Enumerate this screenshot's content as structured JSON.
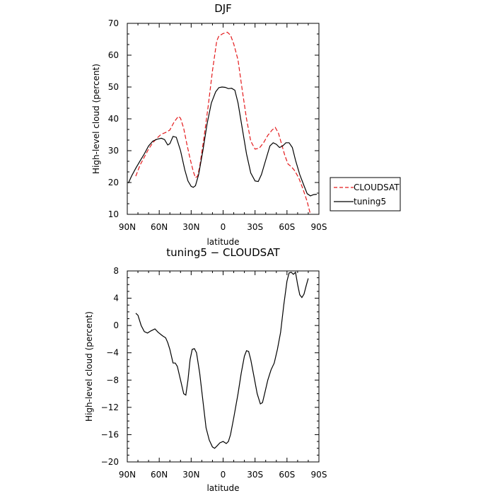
{
  "chart_data": [
    {
      "type": "line",
      "title": "DJF",
      "xlabel": "latitude",
      "ylabel": "High-level cloud (percent)",
      "x_ticks": [
        {
          "value": 90,
          "label": "90N"
        },
        {
          "value": 60,
          "label": "60N"
        },
        {
          "value": 30,
          "label": "30N"
        },
        {
          "value": 0,
          "label": "0"
        },
        {
          "value": -30,
          "label": "30S"
        },
        {
          "value": -60,
          "label": "60S"
        },
        {
          "value": -90,
          "label": "90S"
        }
      ],
      "xlim": [
        90,
        -90
      ],
      "ylim": [
        10,
        70
      ],
      "y_ticks": [
        10,
        20,
        30,
        40,
        50,
        60,
        70
      ],
      "grid": false,
      "legend_position": "right",
      "series": [
        {
          "name": "CLOUDSAT",
          "color": "#e41a1c",
          "dash": "dashed",
          "points": [
            [
              82,
              22.0
            ],
            [
              78,
              25.5
            ],
            [
              74,
              28.0
            ],
            [
              70,
              30.5
            ],
            [
              66,
              32.5
            ],
            [
              62,
              34.0
            ],
            [
              58,
              35.2
            ],
            [
              54,
              35.7
            ],
            [
              50,
              36.5
            ],
            [
              46,
              39.0
            ],
            [
              42,
              40.8
            ],
            [
              40,
              40.2
            ],
            [
              37,
              37.0
            ],
            [
              34,
              32.0
            ],
            [
              31,
              27.5
            ],
            [
              28,
              23.5
            ],
            [
              26,
              21.5
            ],
            [
              24,
              22.0
            ],
            [
              22,
              25.0
            ],
            [
              18,
              34.0
            ],
            [
              14,
              44.0
            ],
            [
              10,
              55.0
            ],
            [
              6,
              64.5
            ],
            [
              4,
              66.0
            ],
            [
              0,
              66.8
            ],
            [
              -4,
              67.2
            ],
            [
              -7,
              66.3
            ],
            [
              -10,
              63.5
            ],
            [
              -14,
              58.5
            ],
            [
              -18,
              49.0
            ],
            [
              -22,
              40.0
            ],
            [
              -26,
              33.0
            ],
            [
              -30,
              30.5
            ],
            [
              -34,
              30.8
            ],
            [
              -38,
              32.5
            ],
            [
              -42,
              34.8
            ],
            [
              -46,
              36.5
            ],
            [
              -49,
              37.3
            ],
            [
              -52,
              35.5
            ],
            [
              -55,
              32.0
            ],
            [
              -58,
              28.5
            ],
            [
              -61,
              25.8
            ],
            [
              -64,
              25.0
            ],
            [
              -67,
              23.8
            ],
            [
              -71,
              21.5
            ],
            [
              -75,
              18.0
            ],
            [
              -79,
              14.0
            ],
            [
              -82,
              10.0
            ]
          ]
        },
        {
          "name": "tuning5",
          "color": "#000000",
          "dash": "solid",
          "points": [
            [
              89,
              19.8
            ],
            [
              86,
              22.0
            ],
            [
              82,
              24.5
            ],
            [
              78,
              26.8
            ],
            [
              74,
              29.0
            ],
            [
              70,
              31.5
            ],
            [
              66,
              33.0
            ],
            [
              62,
              33.6
            ],
            [
              58,
              33.9
            ],
            [
              55,
              33.5
            ],
            [
              52,
              31.8
            ],
            [
              50,
              32.2
            ],
            [
              47,
              34.5
            ],
            [
              44,
              34.2
            ],
            [
              40,
              30.0
            ],
            [
              36,
              24.0
            ],
            [
              33,
              20.5
            ],
            [
              30,
              18.8
            ],
            [
              28,
              18.5
            ],
            [
              26,
              19.0
            ],
            [
              23,
              22.5
            ],
            [
              19,
              30.0
            ],
            [
              15,
              38.5
            ],
            [
              11,
              45.0
            ],
            [
              7,
              48.5
            ],
            [
              4,
              49.8
            ],
            [
              1,
              50.0
            ],
            [
              -2,
              49.9
            ],
            [
              -5,
              49.5
            ],
            [
              -8,
              49.6
            ],
            [
              -11,
              49.0
            ],
            [
              -14,
              45.0
            ],
            [
              -18,
              37.0
            ],
            [
              -22,
              29.0
            ],
            [
              -26,
              23.0
            ],
            [
              -30,
              20.5
            ],
            [
              -33,
              20.3
            ],
            [
              -36,
              22.5
            ],
            [
              -40,
              27.0
            ],
            [
              -44,
              31.5
            ],
            [
              -47,
              32.5
            ],
            [
              -50,
              32.0
            ],
            [
              -53,
              31.0
            ],
            [
              -56,
              31.5
            ],
            [
              -59,
              32.5
            ],
            [
              -62,
              32.5
            ],
            [
              -65,
              31.0
            ],
            [
              -68,
              27.0
            ],
            [
              -72,
              22.5
            ],
            [
              -76,
              19.0
            ],
            [
              -79,
              16.5
            ],
            [
              -82,
              15.8
            ],
            [
              -85,
              16.2
            ],
            [
              -88,
              16.3
            ]
          ]
        }
      ]
    },
    {
      "type": "line",
      "title": "tuning5 − CLOUDSAT",
      "xlabel": "latitude",
      "ylabel": "High-level cloud (percent)",
      "x_ticks": [
        {
          "value": 90,
          "label": "90N"
        },
        {
          "value": 60,
          "label": "60N"
        },
        {
          "value": 30,
          "label": "30N"
        },
        {
          "value": 0,
          "label": "0"
        },
        {
          "value": -30,
          "label": "30S"
        },
        {
          "value": -60,
          "label": "60S"
        },
        {
          "value": -90,
          "label": "90S"
        }
      ],
      "xlim": [
        90,
        -90
      ],
      "ylim": [
        -20,
        8
      ],
      "y_ticks": [
        -20,
        -16,
        -12,
        -8,
        -4,
        0,
        4,
        8
      ],
      "grid": false,
      "series": [
        {
          "color": "#000000",
          "dash": "solid",
          "points": [
            [
              82,
              1.8
            ],
            [
              80,
              1.5
            ],
            [
              77,
              0.0
            ],
            [
              74,
              -0.9
            ],
            [
              71,
              -1.1
            ],
            [
              68,
              -0.8
            ],
            [
              64,
              -0.5
            ],
            [
              61,
              -1.0
            ],
            [
              57,
              -1.5
            ],
            [
              54,
              -1.8
            ],
            [
              52,
              -2.5
            ],
            [
              50,
              -3.5
            ],
            [
              47,
              -5.5
            ],
            [
              45,
              -5.5
            ],
            [
              43,
              -6.0
            ],
            [
              40,
              -8.0
            ],
            [
              37,
              -10.0
            ],
            [
              35,
              -10.2
            ],
            [
              33,
              -8.0
            ],
            [
              31,
              -5.0
            ],
            [
              29,
              -3.5
            ],
            [
              27,
              -3.4
            ],
            [
              25,
              -4.0
            ],
            [
              22,
              -7.0
            ],
            [
              19,
              -11.0
            ],
            [
              16,
              -15.0
            ],
            [
              13,
              -16.8
            ],
            [
              10,
              -17.8
            ],
            [
              8,
              -18.0
            ],
            [
              6,
              -17.7
            ],
            [
              3,
              -17.2
            ],
            [
              0,
              -17.0
            ],
            [
              -3,
              -17.3
            ],
            [
              -5,
              -17.0
            ],
            [
              -7,
              -16.0
            ],
            [
              -10,
              -13.5
            ],
            [
              -14,
              -10.0
            ],
            [
              -17,
              -7.0
            ],
            [
              -20,
              -4.5
            ],
            [
              -22,
              -3.7
            ],
            [
              -24,
              -3.8
            ],
            [
              -26,
              -5.0
            ],
            [
              -29,
              -7.5
            ],
            [
              -32,
              -10.0
            ],
            [
              -35,
              -11.5
            ],
            [
              -37,
              -11.3
            ],
            [
              -39,
              -10.0
            ],
            [
              -42,
              -8.0
            ],
            [
              -45,
              -6.5
            ],
            [
              -48,
              -5.5
            ],
            [
              -51,
              -3.5
            ],
            [
              -54,
              -1.0
            ],
            [
              -57,
              3.0
            ],
            [
              -60,
              6.5
            ],
            [
              -62,
              7.7
            ],
            [
              -64,
              7.8
            ],
            [
              -66,
              7.5
            ],
            [
              -68,
              7.8
            ],
            [
              -70,
              6.0
            ],
            [
              -72,
              4.5
            ],
            [
              -74,
              4.1
            ],
            [
              -76,
              4.6
            ],
            [
              -78,
              5.8
            ],
            [
              -80,
              6.9
            ]
          ]
        }
      ]
    }
  ]
}
